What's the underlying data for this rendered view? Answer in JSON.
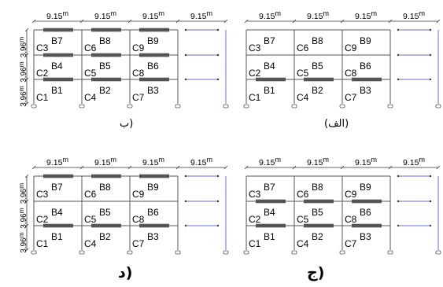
{
  "span_label": "9.15",
  "span_unit": "m",
  "story_label": "3.96",
  "story_unit": "m",
  "frames": [
    {
      "caption": "ب)",
      "cells": [
        [
          "C3",
          "B7",
          "C6",
          "B8",
          "C9",
          "B9"
        ],
        [
          "C2",
          "B4",
          "C5",
          "B5",
          "C8",
          "B6"
        ],
        [
          "C1",
          "B1",
          "C4",
          "B2",
          "C7",
          "B3"
        ]
      ],
      "strengthened_levels": [
        "roof",
        "floor2",
        "floor1"
      ],
      "story_dims": true
    },
    {
      "caption": "(الف)",
      "cells": [
        [
          "C3",
          "B7",
          "C6",
          "B8",
          "C9",
          "B9"
        ],
        [
          "C2",
          "B4",
          "C5",
          "B5",
          "C8",
          "B6"
        ],
        [
          "C1",
          "B1",
          "C4",
          "B2",
          "C7",
          "B3"
        ]
      ],
      "strengthened_levels": [
        "floor1"
      ],
      "story_dims": false
    },
    {
      "caption": "د)",
      "cells": [
        [
          "C3",
          "B7",
          "C6",
          "B8",
          "C9",
          "B9"
        ],
        [
          "C2",
          "B4",
          "C5",
          "B5",
          "C8",
          "B6"
        ],
        [
          "C1",
          "B1",
          "C4",
          "B2",
          "C7",
          "B3"
        ]
      ],
      "strengthened_levels": [
        "roof",
        "floor1"
      ],
      "story_dims": true
    },
    {
      "caption": "ج)",
      "cells": [
        [
          "C3",
          "B7",
          "C6",
          "B8",
          "C9",
          "B9"
        ],
        [
          "C2",
          "B4",
          "C5",
          "B5",
          "C8",
          "B6"
        ],
        [
          "C1",
          "B1",
          "C4",
          "B2",
          "C7",
          "B3"
        ]
      ],
      "strengthened_levels": [
        "floor2",
        "floor1"
      ],
      "story_dims": false
    }
  ],
  "colors": {
    "frame_line": "#555555",
    "strengthened_beam": "#555555",
    "cable": "#6e6ad8",
    "text": "#000000"
  }
}
